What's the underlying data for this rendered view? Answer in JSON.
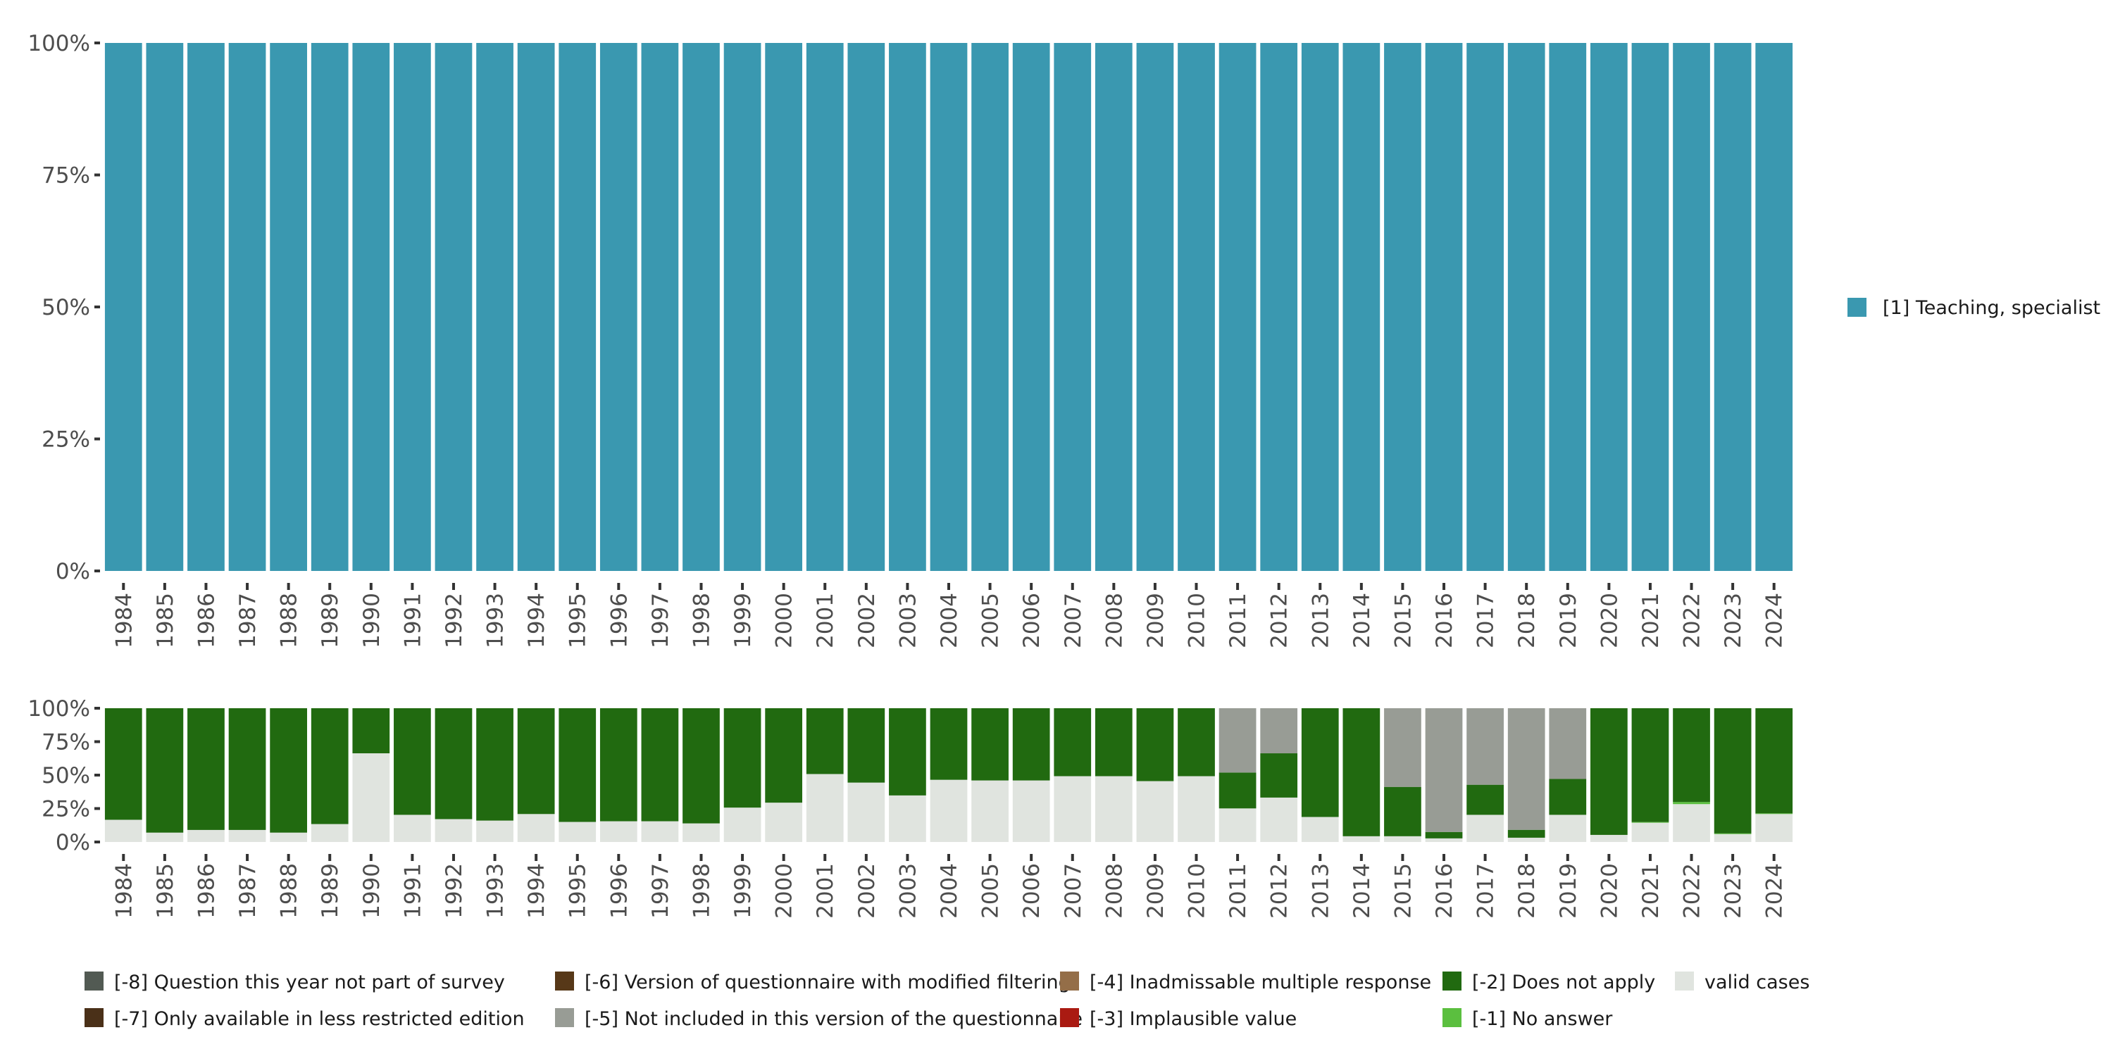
{
  "colors": {
    "teaching_specialist": "#3a98b0",
    "q_not_part": "#525a53",
    "less_restricted": "#4a3018",
    "modified_filtering": "#573818",
    "not_included": "#989c95",
    "inadmissable": "#946e48",
    "implausible": "#aa1a12",
    "does_not_apply": "#216a10",
    "no_answer": "#5bbf3f",
    "valid": "#e0e4df"
  },
  "chart_data": [
    {
      "type": "bar",
      "stacked": true,
      "title": "",
      "xlabel": "",
      "ylabel": "",
      "ylim": [
        0,
        100
      ],
      "yticks": [
        "0%",
        "25%",
        "50%",
        "75%",
        "100%"
      ],
      "categories": [
        "1984",
        "1985",
        "1986",
        "1987",
        "1988",
        "1989",
        "1990",
        "1991",
        "1992",
        "1993",
        "1994",
        "1995",
        "1996",
        "1997",
        "1998",
        "1999",
        "2000",
        "2001",
        "2002",
        "2003",
        "2004",
        "2005",
        "2006",
        "2007",
        "2008",
        "2009",
        "2010",
        "2011",
        "2012",
        "2013",
        "2014",
        "2015",
        "2016",
        "2017",
        "2018",
        "2019",
        "2020",
        "2021",
        "2022",
        "2023",
        "2024"
      ],
      "series": [
        {
          "name": "[1] Teaching, specialist",
          "color_key": "teaching_specialist",
          "values": [
            100,
            100,
            100,
            100,
            100,
            100,
            100,
            100,
            100,
            100,
            100,
            100,
            100,
            100,
            100,
            100,
            100,
            100,
            100,
            100,
            100,
            100,
            100,
            100,
            100,
            100,
            100,
            100,
            100,
            100,
            100,
            100,
            100,
            100,
            100,
            100,
            100,
            100,
            100,
            100,
            100
          ]
        }
      ],
      "legend": {
        "position": "right",
        "items": [
          "[1] Teaching, specialist"
        ]
      }
    },
    {
      "type": "bar",
      "stacked": true,
      "ylim": [
        0,
        100
      ],
      "yticks": [
        "0%",
        "25%",
        "50%",
        "75%",
        "100%"
      ],
      "categories": [
        "1984",
        "1985",
        "1986",
        "1987",
        "1988",
        "1989",
        "1990",
        "1991",
        "1992",
        "1993",
        "1994",
        "1995",
        "1996",
        "1997",
        "1998",
        "1999",
        "2000",
        "2001",
        "2002",
        "2003",
        "2004",
        "2005",
        "2006",
        "2007",
        "2008",
        "2009",
        "2010",
        "2011",
        "2012",
        "2013",
        "2014",
        "2015",
        "2016",
        "2017",
        "2018",
        "2019",
        "2020",
        "2021",
        "2022",
        "2023",
        "2024"
      ],
      "series": [
        {
          "name": "valid cases",
          "color_key": "valid",
          "values": [
            16.6,
            7,
            9,
            9,
            7,
            13.4,
            66.3,
            20.3,
            17.1,
            16,
            20.9,
            15,
            15.5,
            15.5,
            13.9,
            25.7,
            29.4,
            50.8,
            44.4,
            34.8,
            46.5,
            46,
            46,
            49.2,
            49.2,
            45.5,
            49.2,
            25.1,
            33.2,
            18.7,
            4.3,
            4.3,
            2.7,
            20.3,
            3.2,
            20.3,
            5.3,
            14.4,
            28.3,
            5.9,
            20.9
          ]
        },
        {
          "name": "[-1] No answer",
          "color_key": "no_answer",
          "values": [
            0,
            0,
            0,
            0,
            0,
            0,
            0,
            0,
            0,
            0,
            0,
            0,
            0,
            0,
            0,
            0,
            0,
            0,
            0,
            0,
            0,
            0,
            0,
            0,
            0,
            0,
            0,
            0,
            0,
            0,
            0,
            0,
            0,
            0,
            0,
            0,
            0,
            0.5,
            1.6,
            0.5,
            0.5
          ]
        },
        {
          "name": "[-2] Does not apply",
          "color_key": "does_not_apply",
          "values": [
            83.4,
            93,
            91,
            91,
            93,
            86.6,
            33.7,
            79.7,
            82.9,
            84,
            79.1,
            85,
            84.5,
            84.5,
            86.1,
            74.3,
            70.6,
            49.2,
            55.6,
            65.2,
            53.5,
            54,
            54,
            50.8,
            50.8,
            54.5,
            50.8,
            26.8,
            33.1,
            81.3,
            95.7,
            36.9,
            4.8,
            22.5,
            5.9,
            26.8,
            94.7,
            85.1,
            70.1,
            93.6,
            78.6
          ]
        },
        {
          "name": "[-5] Not included in this version of the questionnaire",
          "color_key": "not_included",
          "values": [
            0,
            0,
            0,
            0,
            0,
            0,
            0,
            0,
            0,
            0,
            0,
            0,
            0,
            0,
            0,
            0,
            0,
            0,
            0,
            0,
            0,
            0,
            0,
            0,
            0,
            0,
            0,
            48.1,
            33.7,
            0,
            0,
            58.8,
            92.5,
            57.2,
            90.9,
            52.9,
            0,
            0,
            0,
            0,
            0
          ]
        }
      ],
      "legend": {
        "position": "bottom",
        "items": [
          {
            "label": "[-8] Question this year not part of survey",
            "color_key": "q_not_part"
          },
          {
            "label": "[-7] Only available in less restricted edition",
            "color_key": "less_restricted"
          },
          {
            "label": "[-6] Version of questionnaire with modified filtering",
            "color_key": "modified_filtering"
          },
          {
            "label": "[-5] Not included in this version of the questionnaire",
            "color_key": "not_included"
          },
          {
            "label": "[-4] Inadmissable multiple response",
            "color_key": "inadmissable"
          },
          {
            "label": "[-3] Implausible value",
            "color_key": "implausible"
          },
          {
            "label": "[-2] Does not apply",
            "color_key": "does_not_apply"
          },
          {
            "label": "[-1] No answer",
            "color_key": "no_answer"
          },
          {
            "label": "valid cases",
            "color_key": "valid"
          }
        ]
      }
    }
  ]
}
